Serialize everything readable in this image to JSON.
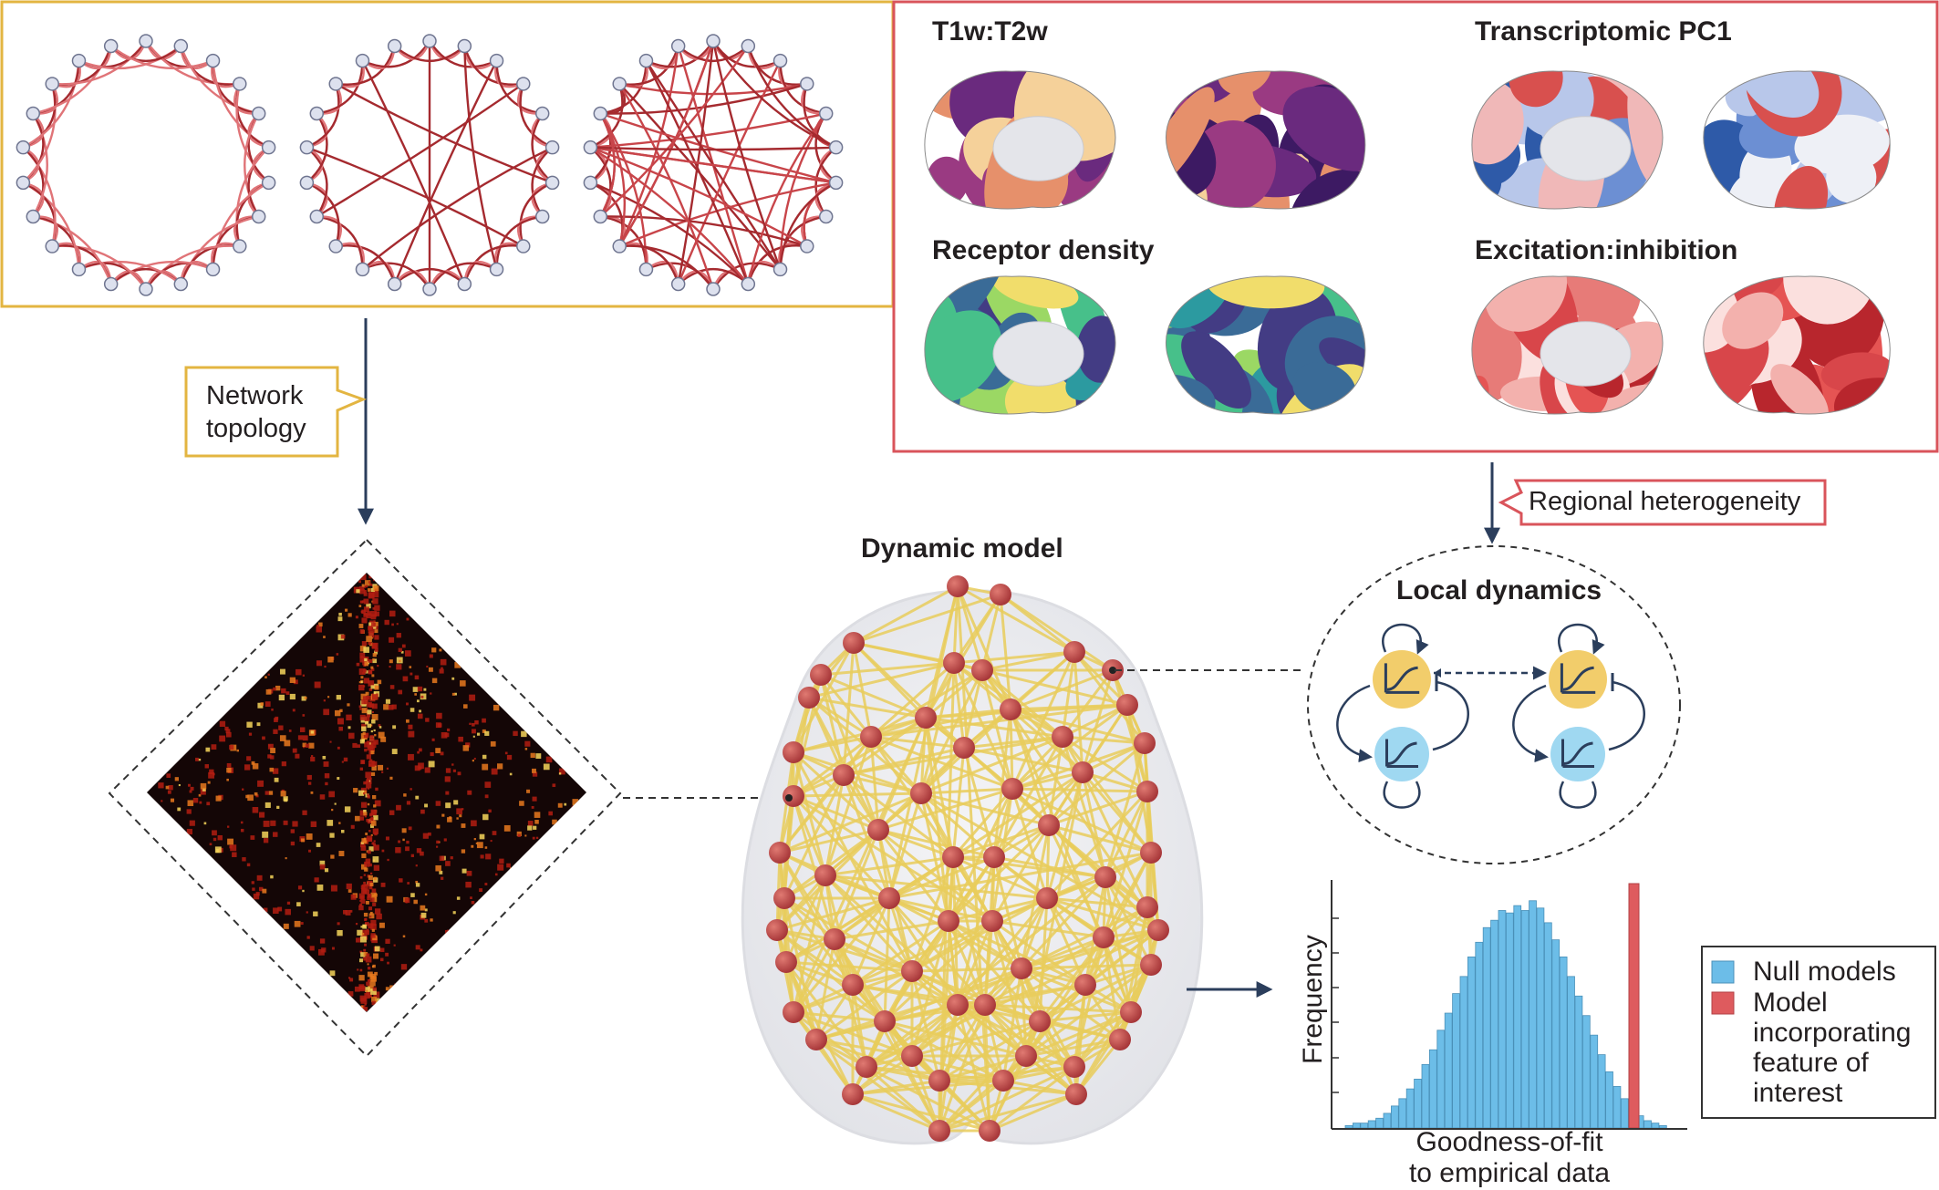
{
  "colors": {
    "network_border": "#e3b541",
    "heterogeneity_border": "#d9545b",
    "arrow": "#2b3e5c",
    "node": "#c14a4a",
    "edge": "#e9cd5c",
    "null_bar": "#6cbde8",
    "model_bar": "#de5b5e",
    "excitatory": "#f2cd6b",
    "inhibitory": "#9fd8f1"
  },
  "network_topology": {
    "label_line1": "Network",
    "label_line2": "topology",
    "graphs": [
      "regular-lattice",
      "small-world",
      "random"
    ]
  },
  "regional_heterogeneity": {
    "label": "Regional heterogeneity",
    "maps": [
      {
        "title": "T1w:T2w",
        "colormap": "plasma"
      },
      {
        "title": "Transcriptomic PC1",
        "colormap": "red-blue"
      },
      {
        "title": "Receptor density",
        "colormap": "viridis"
      },
      {
        "title": "Excitation:inhibition",
        "colormap": "reds"
      }
    ]
  },
  "dynamic_model": {
    "title": "Dynamic model"
  },
  "local_dynamics": {
    "title": "Local dynamics"
  },
  "histogram": {
    "ylabel": "Frequency",
    "xlabel_line1": "Goodness-of-fit",
    "xlabel_line2": "to empirical data",
    "legend": {
      "null": "Null models",
      "model_line1": "Model",
      "model_line2": "incorporating",
      "model_line3": "feature of",
      "model_line4": "interest"
    }
  },
  "chart_data": {
    "type": "bar",
    "title": "",
    "xlabel": "Goodness-of-fit to empirical data",
    "ylabel": "Frequency",
    "grid": false,
    "legend_placement": "right",
    "series": [
      {
        "name": "Null models",
        "values": [
          1,
          2,
          2,
          3,
          4,
          6,
          9,
          12,
          16,
          20,
          26,
          32,
          40,
          47,
          55,
          62,
          70,
          76,
          82,
          85,
          89,
          88,
          91,
          89,
          93,
          90,
          84,
          77,
          70,
          62,
          54,
          46,
          38,
          30,
          23,
          17,
          12,
          8,
          5,
          3,
          2,
          1
        ]
      },
      {
        "name": "Model incorporating feature of interest",
        "values": [
          100
        ]
      }
    ]
  }
}
